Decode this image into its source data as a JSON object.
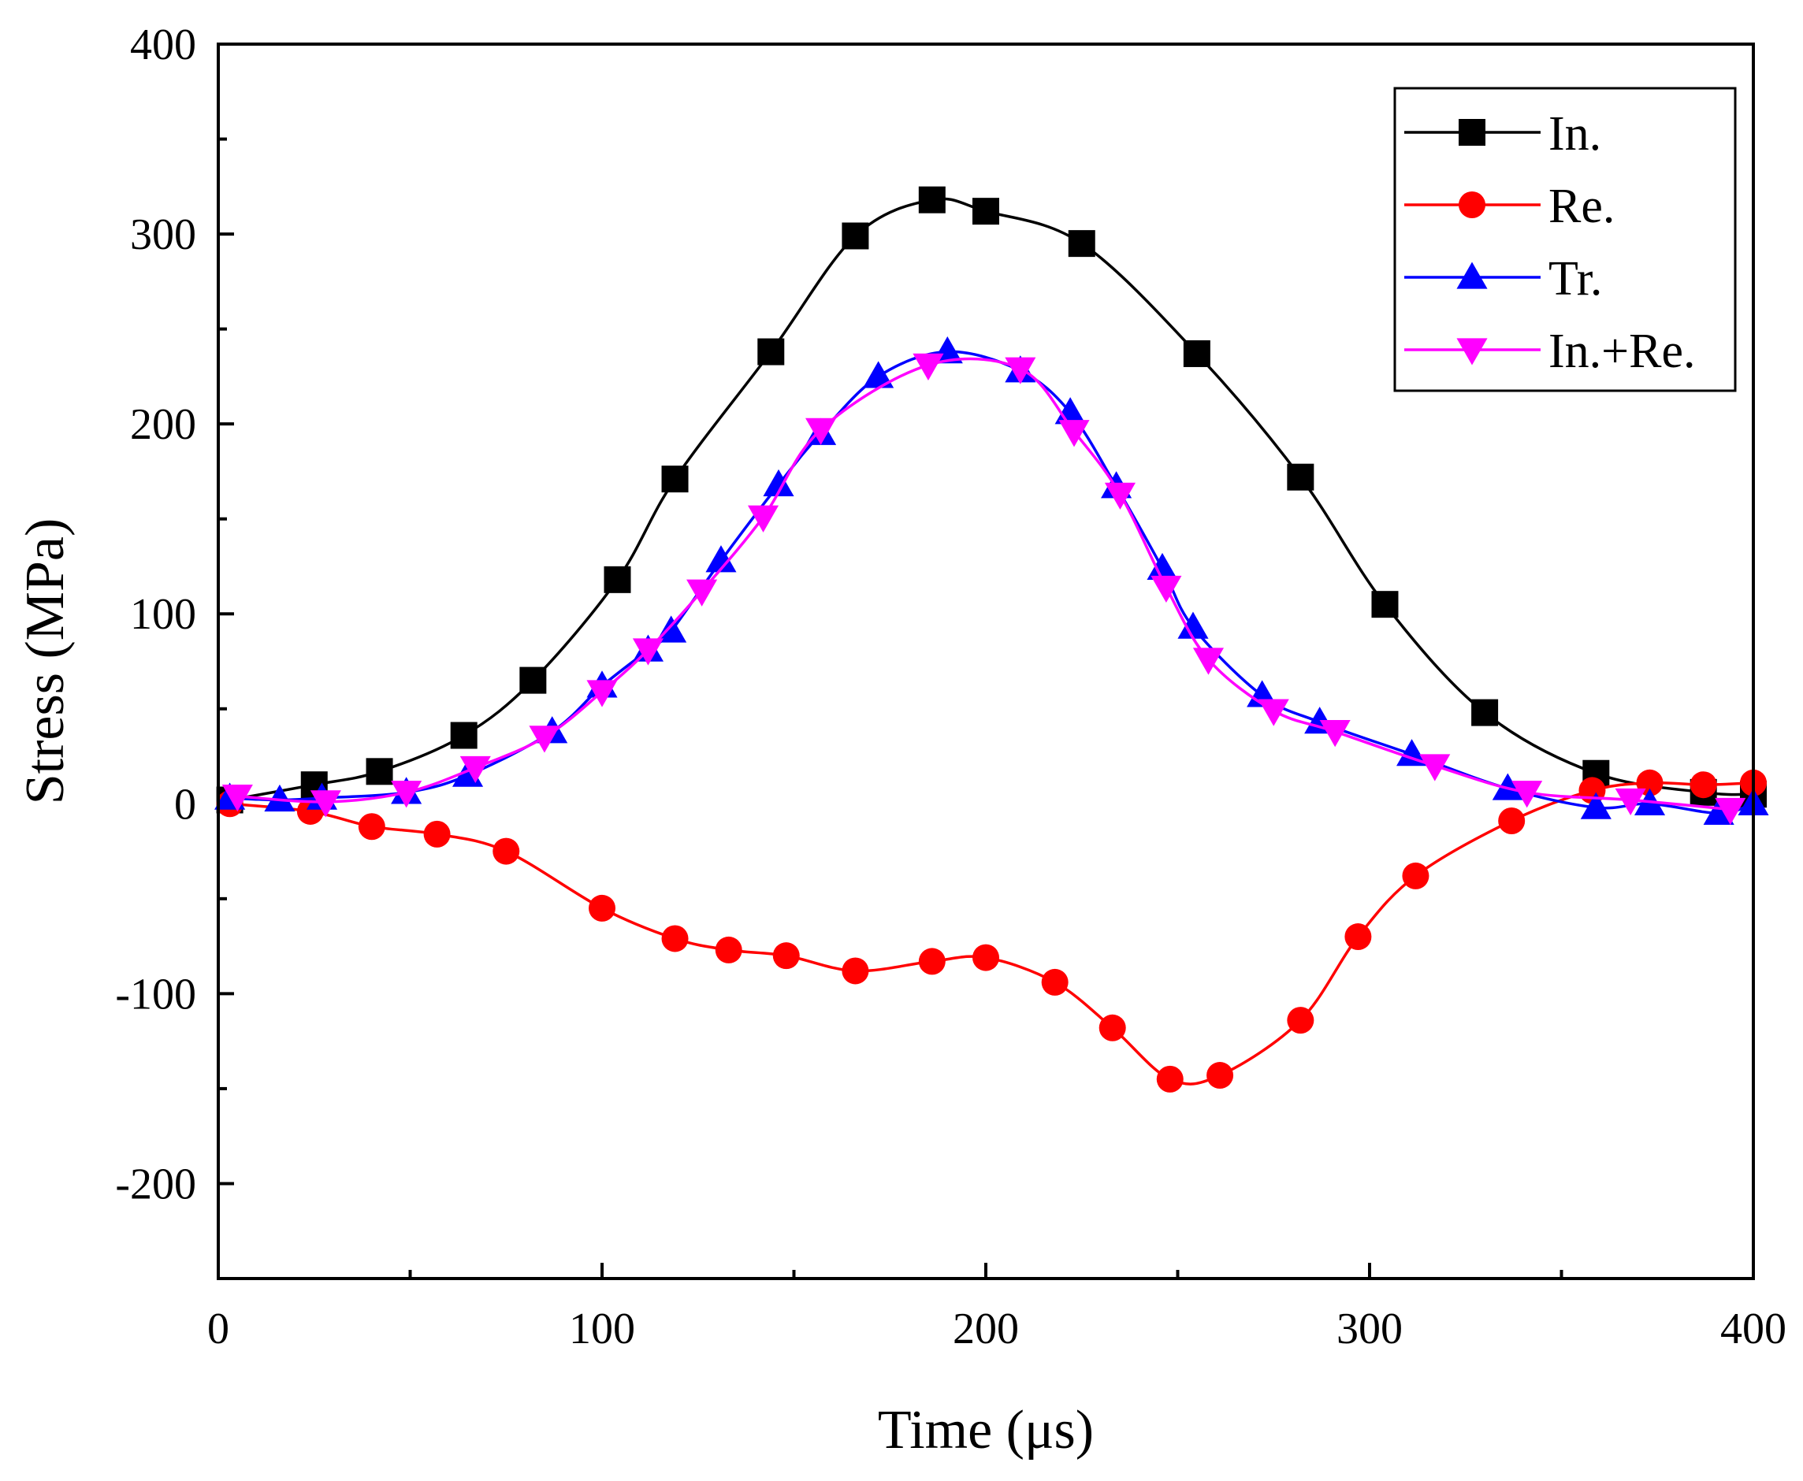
{
  "chart_data": {
    "type": "line",
    "xlabel": "Time (μs)",
    "ylabel": "Stress (MPa)",
    "xlim": [
      0,
      400
    ],
    "ylim": [
      -250,
      400
    ],
    "xticks": [
      0,
      100,
      200,
      300,
      400
    ],
    "yticks": [
      -200,
      -100,
      0,
      100,
      200,
      300,
      400
    ],
    "grid": false,
    "legend_position": "top-right",
    "series": [
      {
        "name": "In.",
        "color": "#000000",
        "marker": "square",
        "points": [
          [
            3,
            2
          ],
          [
            25,
            10
          ],
          [
            42,
            17
          ],
          [
            64,
            36
          ],
          [
            82,
            65
          ],
          [
            104,
            118
          ],
          [
            119,
            171
          ],
          [
            144,
            238
          ],
          [
            166,
            299
          ],
          [
            186,
            318
          ],
          [
            200,
            312
          ],
          [
            225,
            295
          ],
          [
            255,
            237
          ],
          [
            282,
            172
          ],
          [
            304,
            105
          ],
          [
            330,
            48
          ],
          [
            359,
            16
          ],
          [
            387,
            6
          ],
          [
            400,
            5
          ]
        ]
      },
      {
        "name": "Re.",
        "color": "#ff0000",
        "marker": "circle",
        "points": [
          [
            3,
            0
          ],
          [
            24,
            -4
          ],
          [
            40,
            -12
          ],
          [
            57,
            -16
          ],
          [
            75,
            -25
          ],
          [
            100,
            -55
          ],
          [
            119,
            -71
          ],
          [
            133,
            -77
          ],
          [
            148,
            -80
          ],
          [
            166,
            -88
          ],
          [
            186,
            -83
          ],
          [
            200,
            -81
          ],
          [
            218,
            -94
          ],
          [
            233,
            -118
          ],
          [
            248,
            -145
          ],
          [
            261,
            -143
          ],
          [
            282,
            -114
          ],
          [
            297,
            -70
          ],
          [
            312,
            -38
          ],
          [
            337,
            -9
          ],
          [
            358,
            7
          ],
          [
            373,
            11
          ],
          [
            387,
            10
          ],
          [
            400,
            11
          ]
        ]
      },
      {
        "name": "Tr.",
        "color": "#0000ff",
        "marker": "triangle-up",
        "points": [
          [
            3,
            3
          ],
          [
            16,
            2
          ],
          [
            27,
            3
          ],
          [
            49,
            6
          ],
          [
            65,
            15
          ],
          [
            87,
            38
          ],
          [
            100,
            62
          ],
          [
            112,
            81
          ],
          [
            118,
            91
          ],
          [
            131,
            128
          ],
          [
            146,
            168
          ],
          [
            157,
            195
          ],
          [
            172,
            225
          ],
          [
            190,
            238
          ],
          [
            209,
            228
          ],
          [
            222,
            206
          ],
          [
            234,
            167
          ],
          [
            246,
            124
          ],
          [
            254,
            93
          ],
          [
            272,
            57
          ],
          [
            287,
            43
          ],
          [
            311,
            26
          ],
          [
            336,
            8
          ],
          [
            359,
            -2
          ],
          [
            373,
            0
          ],
          [
            391,
            -5
          ],
          [
            400,
            0
          ]
        ]
      },
      {
        "name": "In.+Re.",
        "color": "#ff00ff",
        "marker": "triangle-down",
        "points": [
          [
            5,
            4
          ],
          [
            28,
            1
          ],
          [
            49,
            6
          ],
          [
            67,
            19
          ],
          [
            85,
            35
          ],
          [
            100,
            59
          ],
          [
            112,
            81
          ],
          [
            126,
            112
          ],
          [
            142,
            151
          ],
          [
            157,
            197
          ],
          [
            185,
            231
          ],
          [
            209,
            229
          ],
          [
            223,
            196
          ],
          [
            235,
            163
          ],
          [
            247,
            114
          ],
          [
            258,
            76
          ],
          [
            275,
            49
          ],
          [
            291,
            38
          ],
          [
            317,
            20
          ],
          [
            341,
            6
          ],
          [
            368,
            2
          ],
          [
            394,
            -3
          ]
        ]
      }
    ]
  }
}
